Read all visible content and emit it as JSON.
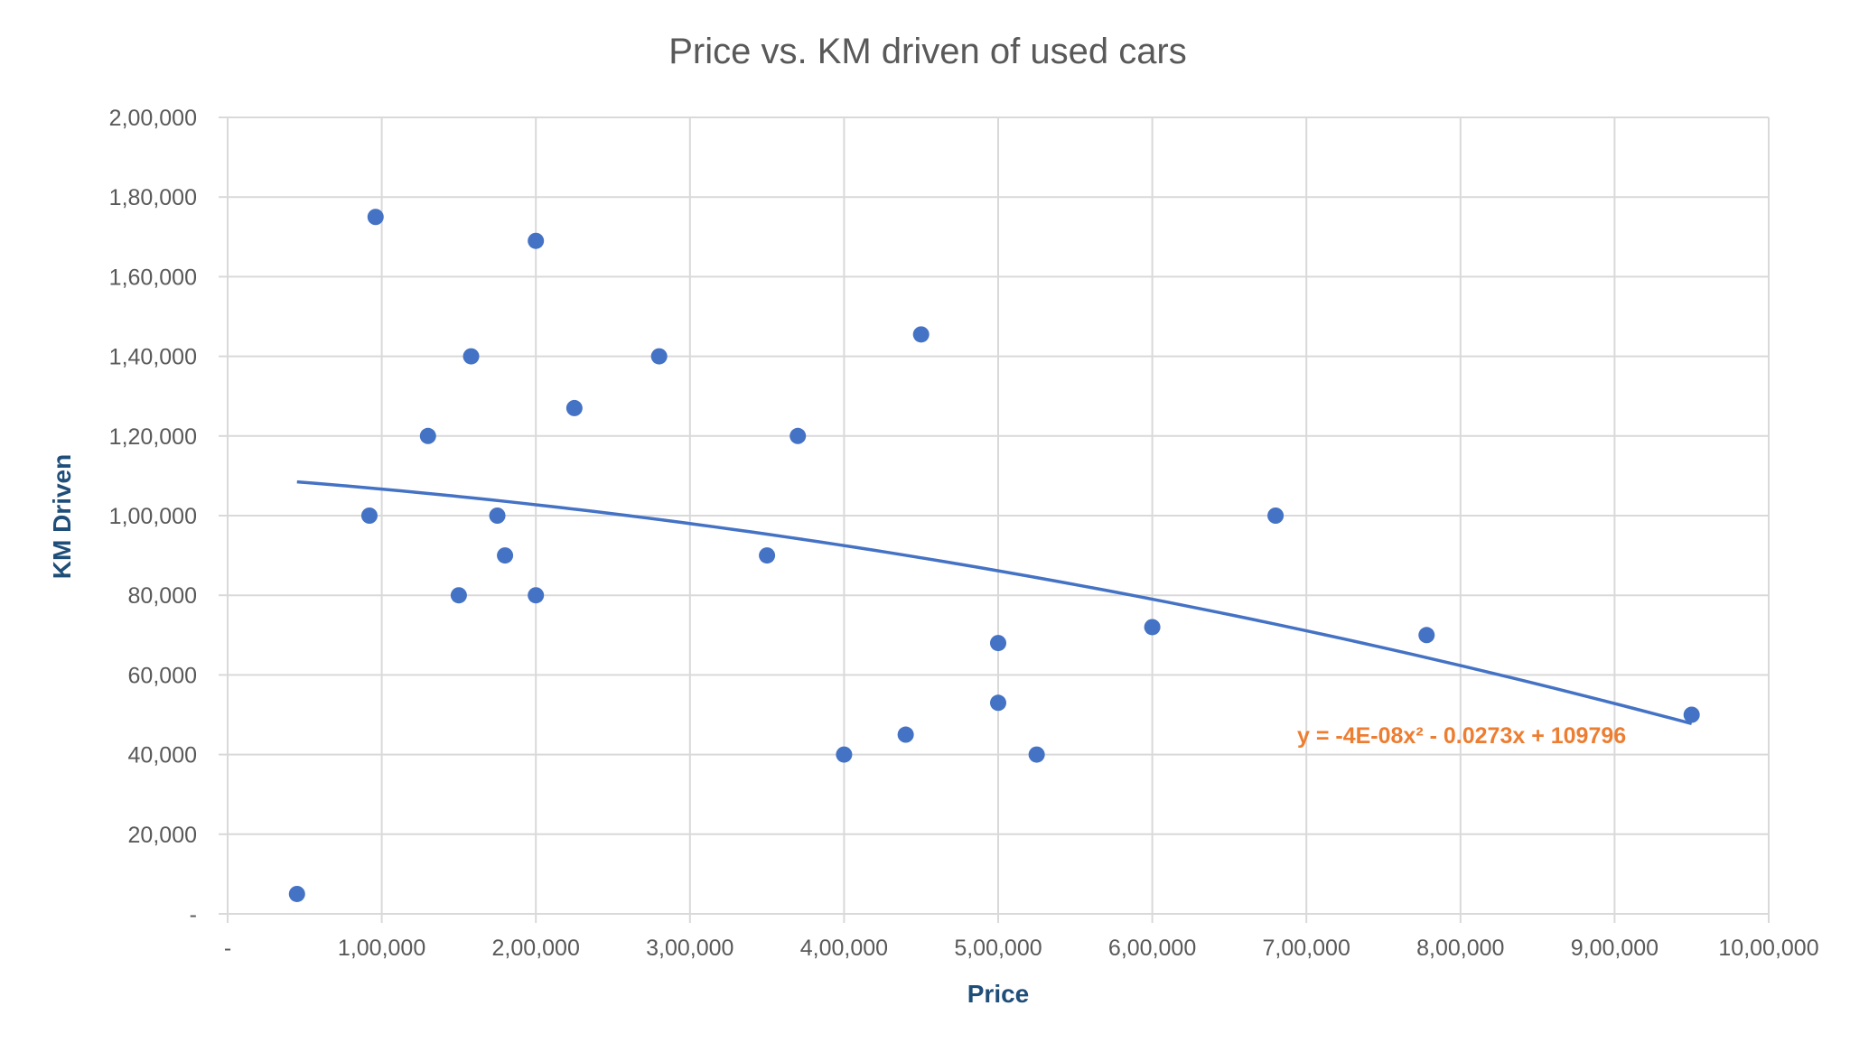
{
  "chart_data": {
    "type": "scatter",
    "title": "Price vs. KM driven of used cars",
    "xlabel": "Price",
    "ylabel": "KM Driven",
    "xlim": [
      0,
      1000000
    ],
    "ylim": [
      0,
      200000
    ],
    "x_ticks": [
      0,
      100000,
      200000,
      300000,
      400000,
      500000,
      600000,
      700000,
      800000,
      900000,
      1000000
    ],
    "x_tick_labels": [
      "-",
      "1,00,000",
      "2,00,000",
      "3,00,000",
      "4,00,000",
      "5,00,000",
      "6,00,000",
      "7,00,000",
      "8,00,000",
      "9,00,000",
      "10,00,000"
    ],
    "y_ticks": [
      0,
      20000,
      40000,
      60000,
      80000,
      100000,
      120000,
      140000,
      160000,
      180000,
      200000
    ],
    "y_tick_labels": [
      "-",
      "20,000",
      "40,000",
      "60,000",
      "80,000",
      "1,00,000",
      "1,20,000",
      "1,40,000",
      "1,60,000",
      "1,80,000",
      "2,00,000"
    ],
    "grid": true,
    "legend": "none",
    "series": [
      {
        "color": "#4472c4",
        "points": [
          {
            "x": 45000,
            "y": 5000
          },
          {
            "x": 92000,
            "y": 100000
          },
          {
            "x": 96000,
            "y": 175000
          },
          {
            "x": 130000,
            "y": 120000
          },
          {
            "x": 150000,
            "y": 80000
          },
          {
            "x": 158000,
            "y": 140000
          },
          {
            "x": 175000,
            "y": 100000
          },
          {
            "x": 180000,
            "y": 90000
          },
          {
            "x": 200000,
            "y": 169000
          },
          {
            "x": 200000,
            "y": 80000
          },
          {
            "x": 225000,
            "y": 127000
          },
          {
            "x": 280000,
            "y": 140000
          },
          {
            "x": 350000,
            "y": 90000
          },
          {
            "x": 370000,
            "y": 120000
          },
          {
            "x": 400000,
            "y": 40000
          },
          {
            "x": 440000,
            "y": 45000
          },
          {
            "x": 450000,
            "y": 145500
          },
          {
            "x": 500000,
            "y": 68000
          },
          {
            "x": 500000,
            "y": 53000
          },
          {
            "x": 525000,
            "y": 40000
          },
          {
            "x": 600000,
            "y": 72000
          },
          {
            "x": 680000,
            "y": 100000
          },
          {
            "x": 778000,
            "y": 70000
          },
          {
            "x": 950000,
            "y": 50000
          }
        ]
      }
    ],
    "trendline": {
      "type": "polynomial",
      "order": 2,
      "coefficients": {
        "a": -4e-08,
        "b": -0.0273,
        "c": 109796
      },
      "x_range": [
        45000,
        950000
      ],
      "color": "#4472c4",
      "equation_label": "y = -4E-08x² - 0.0273x + 109796",
      "equation_color": "#ed7d31"
    }
  }
}
